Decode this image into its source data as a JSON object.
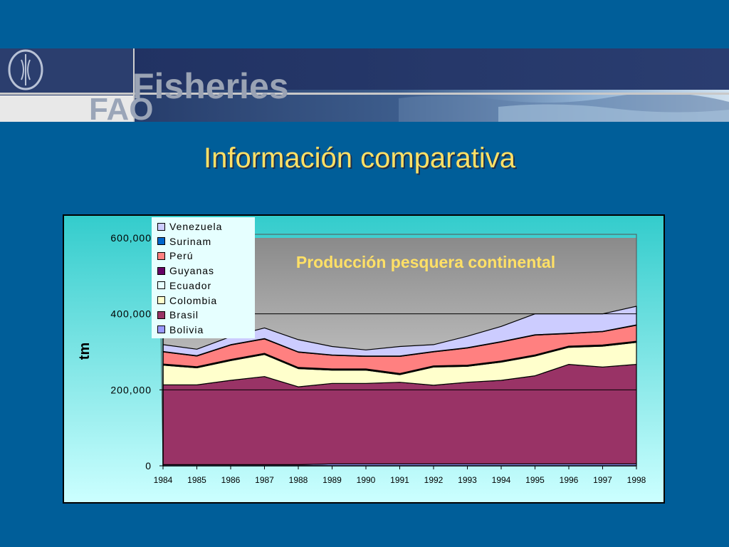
{
  "slide": {
    "title": "Información comparativa",
    "banner_text": "Fisheries",
    "banner_logo_text": "FAO"
  },
  "colors": {
    "background": "#005e99",
    "title": "#ffe066",
    "panel_top": "#33cccc",
    "panel_bottom": "#ccffff",
    "plot_top": "#8a8a8a",
    "plot_bottom": "#e6e6e6",
    "chart_title": "#ffe066"
  },
  "chart_data": {
    "type": "area",
    "stacked": true,
    "title": "Producción pesquera continental",
    "xlabel": "",
    "ylabel": "tm",
    "ylim": [
      0,
      600000
    ],
    "yticks": [
      0,
      200000,
      400000,
      600000
    ],
    "ytick_labels": [
      "0",
      "200,000",
      "400,000",
      "600,000"
    ],
    "x": [
      "1984",
      "1985",
      "1986",
      "1987",
      "1988",
      "1989",
      "1990",
      "1991",
      "1992",
      "1993",
      "1994",
      "1995",
      "1996",
      "1997",
      "1998"
    ],
    "grid": true,
    "legend_position": "top-left",
    "series": [
      {
        "name": "Bolivia",
        "color": "#9999ff",
        "values": [
          3000,
          3000,
          3000,
          3000,
          3000,
          5000,
          5000,
          5000,
          5000,
          5000,
          5000,
          5000,
          5000,
          5000,
          5000
        ]
      },
      {
        "name": "Brasil",
        "color": "#993366",
        "values": [
          210000,
          210000,
          222000,
          232000,
          205000,
          212000,
          212000,
          215000,
          207000,
          215000,
          220000,
          232000,
          262000,
          255000,
          262000
        ]
      },
      {
        "name": "Colombia",
        "color": "#ffffcc",
        "values": [
          52000,
          45000,
          52000,
          58000,
          48000,
          35000,
          35000,
          20000,
          48000,
          42000,
          48000,
          52000,
          45000,
          55000,
          58000
        ]
      },
      {
        "name": "Ecuador",
        "color": "#e6ffff",
        "values": [
          2000,
          2000,
          2000,
          2000,
          2000,
          2000,
          2000,
          2000,
          2000,
          2000,
          2000,
          2000,
          2000,
          2000,
          2000
        ]
      },
      {
        "name": "Guyanas",
        "color": "#660066",
        "values": [
          1000,
          1000,
          1000,
          1000,
          1000,
          1000,
          1000,
          1000,
          1000,
          1000,
          1000,
          1000,
          1000,
          1000,
          1000
        ]
      },
      {
        "name": "Perú",
        "color": "#ff8080",
        "values": [
          32000,
          28000,
          38000,
          38000,
          40000,
          36000,
          33000,
          45000,
          37000,
          45000,
          50000,
          52000,
          33000,
          35000,
          42000
        ]
      },
      {
        "name": "Surinam",
        "color": "#0066cc",
        "values": [
          1000,
          1000,
          1000,
          1000,
          1000,
          1000,
          1000,
          1000,
          1000,
          1000,
          1000,
          1000,
          1000,
          1000,
          1000
        ]
      },
      {
        "name": "Venezuela",
        "color": "#ccccff",
        "values": [
          18000,
          17000,
          21000,
          28000,
          32000,
          22000,
          16000,
          25000,
          18000,
          30000,
          40000,
          55000,
          51000,
          46000,
          49000
        ]
      }
    ],
    "legend_order": [
      "Venezuela",
      "Surinam",
      "Perú",
      "Guyanas",
      "Ecuador",
      "Colombia",
      "Brasil",
      "Bolivia"
    ]
  }
}
